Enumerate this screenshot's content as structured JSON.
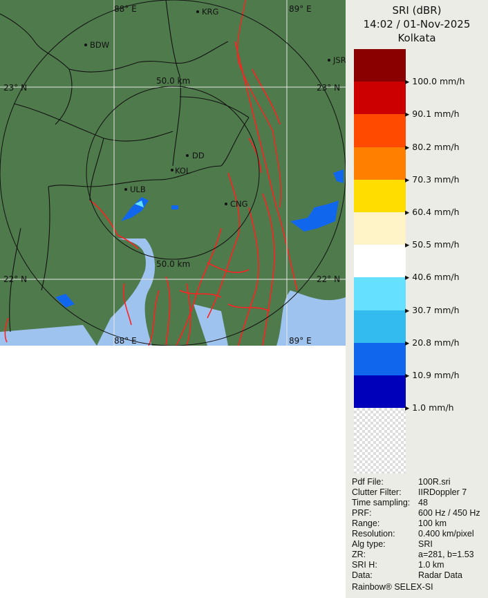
{
  "map": {
    "grid_labels": {
      "lon_88": "88° E",
      "lon_89": "89° E",
      "lat_23": "23° N",
      "lat_22": "22° N",
      "lat_23_right": "23° N",
      "lat_22_right": "22° N",
      "lon_88_bottom": "88° E",
      "lon_89_bottom": "89° E"
    },
    "range_rings": [
      "50.0 km",
      "50.0 km"
    ],
    "cities": [
      {
        "name": "KRG"
      },
      {
        "name": "BDW"
      },
      {
        "name": "JSR"
      },
      {
        "name": "DD"
      },
      {
        "name": "KOL"
      },
      {
        "name": "ULB"
      },
      {
        "name": "CNG"
      }
    ],
    "colors": {
      "land": "#4f7a4c",
      "water": "#9ec3ee",
      "rivers": "#ff2020",
      "borders": "#111111"
    }
  },
  "legend": {
    "product": "SRI (dBR)",
    "datetime": "14:02 / 01-Nov-2025",
    "site": "Kolkata",
    "classes": [
      {
        "color": "#8a0000"
      },
      {
        "color": "#cc0000",
        "label": "100.0 mm/h"
      },
      {
        "color": "#ff4a00",
        "label": "90.1 mm/h"
      },
      {
        "color": "#ff8000",
        "label": "80.2 mm/h"
      },
      {
        "color": "#ffdd00",
        "label": "70.3 mm/h"
      },
      {
        "color": "#fff4c8",
        "label": "60.4 mm/h"
      },
      {
        "color": "#ffffff",
        "label": "50.5 mm/h"
      },
      {
        "color": "#66e0ff",
        "label": "40.6 mm/h"
      },
      {
        "color": "#33bbf0",
        "label": "30.7 mm/h"
      },
      {
        "color": "#1166ee",
        "label": "20.8 mm/h"
      },
      {
        "color": "#0000bb",
        "label": "10.9 mm/h"
      },
      {
        "color": "checker",
        "label": "1.0 mm/h"
      }
    ]
  },
  "info": [
    {
      "k": "Pdf File:",
      "v": "100R.sri"
    },
    {
      "k": "Clutter Filter:",
      "v": "IIRDoppler 7"
    },
    {
      "k": "Time sampling:",
      "v": "48"
    },
    {
      "k": "PRF:",
      "v": "600 Hz / 450 Hz"
    },
    {
      "k": "Range:",
      "v": "100 km"
    },
    {
      "k": "Resolution:",
      "v": "0.400 km/pixel"
    },
    {
      "k": "Alg type:",
      "v": "SRI"
    },
    {
      "k": "ZR:",
      "v": "a=281, b=1.53"
    },
    {
      "k": "SRI H:",
      "v": "1.0 km"
    },
    {
      "k": "Data:",
      "v": "Radar Data"
    }
  ],
  "footer": "Rainbow® SELEX-SI"
}
